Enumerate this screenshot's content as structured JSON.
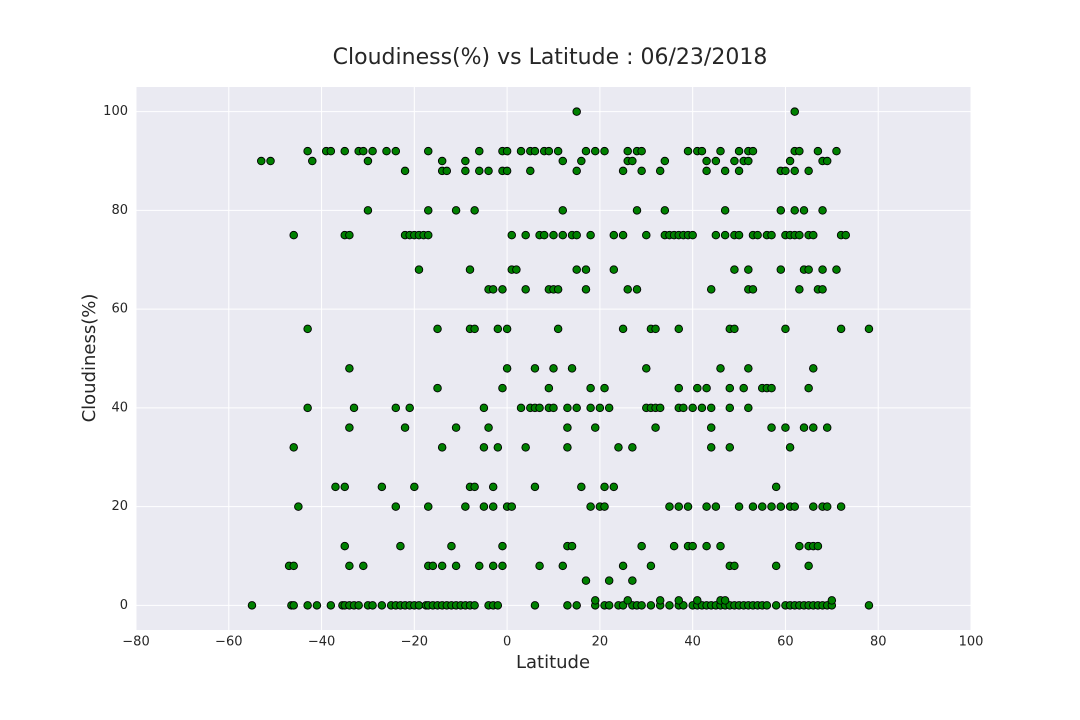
{
  "chart_data": {
    "type": "scatter",
    "title": "Cloudiness(%) vs Latitude  :   06/23/2018",
    "x_label": "Latitude",
    "y_label": "Cloudiness(%)",
    "color": "#008000",
    "edgecolor": "#000000",
    "grid": true,
    "xlim": [
      -80,
      100
    ],
    "ylim": [
      -5,
      105
    ],
    "xticks": [
      {
        "value": -80,
        "label": "−80"
      },
      {
        "value": -60,
        "label": "−60"
      },
      {
        "value": -40,
        "label": "−40"
      },
      {
        "value": -20,
        "label": "−20"
      },
      0,
      20,
      40,
      60,
      80,
      100
    ],
    "yticks": [
      0,
      20,
      40,
      60,
      80,
      100
    ],
    "x": [
      -55,
      -46.5,
      -46,
      -43,
      -41,
      -38,
      -35.5,
      -35,
      -34,
      -33,
      -32,
      -30,
      -29,
      -27,
      -25,
      -24,
      -23,
      -22,
      -21,
      -20,
      -19,
      -17.5,
      -17,
      -16,
      -15,
      -14,
      -13,
      -12,
      -11,
      -10,
      -9,
      -8,
      -7,
      -4,
      -3,
      -2,
      6,
      13,
      15,
      19,
      21,
      22,
      24,
      25,
      27,
      28,
      29,
      31,
      33,
      35,
      37,
      38,
      40,
      41,
      42,
      43,
      44,
      45,
      46,
      47,
      48,
      49,
      50,
      51,
      52,
      53,
      54,
      55,
      56,
      58,
      60,
      61,
      62,
      63,
      64,
      65,
      66,
      67,
      68,
      69,
      70,
      78,
      19,
      26,
      33,
      37,
      41,
      46,
      47,
      70,
      17,
      22,
      27,
      -47,
      -46,
      -34,
      -31,
      -17,
      -16,
      -14,
      -11,
      -6,
      -3,
      -1,
      7,
      12,
      25,
      31,
      48,
      49,
      58,
      65,
      -35,
      -23,
      -12,
      -1,
      13,
      14,
      29,
      36,
      39,
      40,
      43,
      46,
      63,
      65,
      66,
      67,
      -45,
      -24,
      -17,
      -9,
      -5,
      -3,
      0,
      1,
      18,
      20,
      21,
      35,
      37,
      39,
      43,
      45,
      50,
      53,
      55,
      57,
      59,
      61,
      62,
      66,
      68,
      69,
      72,
      -37,
      -35,
      -27,
      -20,
      -8,
      -7,
      -3,
      6,
      16,
      21,
      23,
      58,
      -46,
      -14,
      -5,
      -2,
      4,
      13,
      24,
      27,
      44,
      48,
      61,
      -34,
      -22,
      -11,
      -4,
      13,
      19,
      32,
      44,
      57,
      60,
      64,
      66,
      69,
      -43,
      -33,
      -24,
      -21,
      -5,
      3,
      5,
      6,
      7,
      9,
      10,
      13,
      15,
      18,
      20,
      22,
      30,
      31,
      32,
      33,
      37,
      38,
      40,
      42,
      44,
      48,
      52,
      -15,
      -1,
      9,
      18,
      21,
      37,
      41,
      43,
      48,
      51,
      55,
      56,
      57,
      65,
      -34,
      0,
      6,
      10,
      14,
      30,
      46,
      52,
      66,
      -43,
      -15,
      -8,
      -7,
      -2,
      0,
      11,
      25,
      31,
      32,
      37,
      48,
      49,
      60,
      72,
      78,
      -4,
      -3,
      -1,
      4,
      9,
      10,
      11,
      17,
      26,
      28,
      44,
      52,
      53,
      63,
      67,
      68,
      -19,
      -8,
      1,
      2,
      15,
      17,
      23,
      49,
      52,
      59,
      64,
      65,
      68,
      71,
      -46,
      -35,
      -34,
      -22,
      -21,
      -20,
      -19,
      -18,
      -17,
      1,
      4,
      7,
      8,
      10,
      12,
      14,
      15,
      18,
      23,
      25,
      30,
      34,
      35,
      36,
      37,
      38,
      39,
      40,
      45,
      47,
      49,
      50,
      53,
      54,
      56,
      57,
      60,
      61,
      62,
      63,
      65,
      66,
      72,
      73,
      -30,
      -17,
      -11,
      -7,
      12,
      28,
      34,
      47,
      59,
      62,
      64,
      68,
      -22,
      -14,
      -13,
      -9,
      -6,
      -4,
      -1,
      0,
      5,
      15,
      25,
      29,
      33,
      43,
      47,
      50,
      59,
      60,
      62,
      65,
      -53,
      -51,
      -42,
      -30,
      -14,
      -9,
      12,
      16,
      26,
      27,
      34,
      43,
      45,
      49,
      51,
      52,
      61,
      68,
      69,
      -43,
      -39,
      -38,
      -35,
      -32,
      -31,
      -29,
      -26,
      -24,
      -17,
      -6,
      -1,
      0,
      3,
      5,
      6,
      8,
      9,
      11,
      17,
      19,
      21,
      26,
      28,
      29,
      39,
      41,
      42,
      46,
      50,
      52,
      53,
      62,
      63,
      67,
      71,
      15,
      62
    ],
    "values": [
      0,
      0,
      0,
      0,
      0,
      0,
      0,
      0,
      0,
      0,
      0,
      0,
      0,
      0,
      0,
      0,
      0,
      0,
      0,
      0,
      0,
      0,
      0,
      0,
      0,
      0,
      0,
      0,
      0,
      0,
      0,
      0,
      0,
      0,
      0,
      0,
      0,
      0,
      0,
      0,
      0,
      0,
      0,
      0,
      0,
      0,
      0,
      0,
      0,
      0,
      0,
      0,
      0,
      0,
      0,
      0,
      0,
      0,
      0,
      0,
      0,
      0,
      0,
      0,
      0,
      0,
      0,
      0,
      0,
      0,
      0,
      0,
      0,
      0,
      0,
      0,
      0,
      0,
      0,
      0,
      0,
      0,
      1,
      1,
      1,
      1,
      1,
      1,
      1,
      1,
      5,
      5,
      5,
      8,
      8,
      8,
      8,
      8,
      8,
      8,
      8,
      8,
      8,
      8,
      8,
      8,
      8,
      8,
      8,
      8,
      8,
      8,
      12,
      12,
      12,
      12,
      12,
      12,
      12,
      12,
      12,
      12,
      12,
      12,
      12,
      12,
      12,
      12,
      20,
      20,
      20,
      20,
      20,
      20,
      20,
      20,
      20,
      20,
      20,
      20,
      20,
      20,
      20,
      20,
      20,
      20,
      20,
      20,
      20,
      20,
      20,
      20,
      20,
      20,
      20,
      24,
      24,
      24,
      24,
      24,
      24,
      24,
      24,
      24,
      24,
      24,
      24,
      32,
      32,
      32,
      32,
      32,
      32,
      32,
      32,
      32,
      32,
      32,
      36,
      36,
      36,
      36,
      36,
      36,
      36,
      36,
      36,
      36,
      36,
      36,
      36,
      40,
      40,
      40,
      40,
      40,
      40,
      40,
      40,
      40,
      40,
      40,
      40,
      40,
      40,
      40,
      40,
      40,
      40,
      40,
      40,
      40,
      40,
      40,
      40,
      40,
      40,
      40,
      44,
      44,
      44,
      44,
      44,
      44,
      44,
      44,
      44,
      44,
      44,
      44,
      44,
      44,
      48,
      48,
      48,
      48,
      48,
      48,
      48,
      48,
      48,
      56,
      56,
      56,
      56,
      56,
      56,
      56,
      56,
      56,
      56,
      56,
      56,
      56,
      56,
      56,
      56,
      64,
      64,
      64,
      64,
      64,
      64,
      64,
      64,
      64,
      64,
      64,
      64,
      64,
      64,
      64,
      64,
      68,
      68,
      68,
      68,
      68,
      68,
      68,
      68,
      68,
      68,
      68,
      68,
      68,
      68,
      75,
      75,
      75,
      75,
      75,
      75,
      75,
      75,
      75,
      75,
      75,
      75,
      75,
      75,
      75,
      75,
      75,
      75,
      75,
      75,
      75,
      75,
      75,
      75,
      75,
      75,
      75,
      75,
      75,
      75,
      75,
      75,
      75,
      75,
      75,
      75,
      75,
      75,
      75,
      75,
      75,
      75,
      75,
      75,
      80,
      80,
      80,
      80,
      80,
      80,
      80,
      80,
      80,
      80,
      80,
      80,
      88,
      88,
      88,
      88,
      88,
      88,
      88,
      88,
      88,
      88,
      88,
      88,
      88,
      88,
      88,
      88,
      88,
      88,
      88,
      88,
      90,
      90,
      90,
      90,
      90,
      90,
      90,
      90,
      90,
      90,
      90,
      90,
      90,
      90,
      90,
      90,
      90,
      90,
      90,
      92,
      92,
      92,
      92,
      92,
      92,
      92,
      92,
      92,
      92,
      92,
      92,
      92,
      92,
      92,
      92,
      92,
      92,
      92,
      92,
      92,
      92,
      92,
      92,
      92,
      92,
      92,
      92,
      92,
      92,
      92,
      92,
      92,
      92,
      92,
      92,
      100,
      100
    ]
  }
}
